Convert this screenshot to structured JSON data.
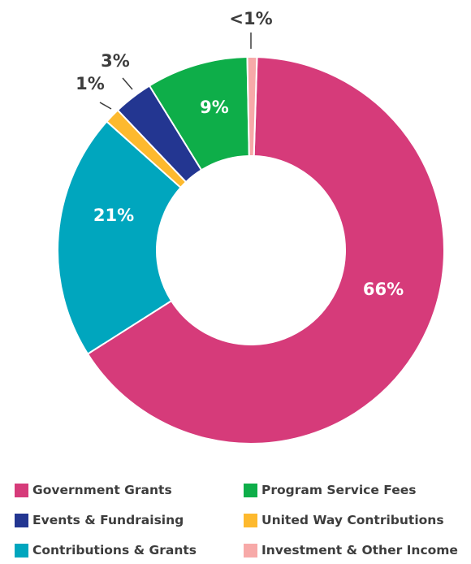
{
  "chart_data": {
    "type": "pie",
    "donut": true,
    "categories": [
      "Government Grants",
      "Contributions & Grants",
      "United Way Contributions",
      "Events & Fundraising",
      "Program Service Fees",
      "Investment & Other Income"
    ],
    "values": [
      66,
      21,
      1,
      3,
      9,
      1
    ],
    "labels": [
      "66%",
      "21%",
      "1%",
      "3%",
      "9%",
      "<1%"
    ],
    "colors": [
      "#d63b7a",
      "#00a6be",
      "#fdb92e",
      "#233691",
      "#0eae49",
      "#f7a9a8"
    ],
    "legend_position": "bottom",
    "legend": [
      {
        "label": "Government Grants",
        "color": "#d63b7a"
      },
      {
        "label": "Program Service Fees",
        "color": "#0eae49"
      },
      {
        "label": "Events & Fundraising",
        "color": "#233691"
      },
      {
        "label": "United Way Contributions",
        "color": "#fdb92e"
      },
      {
        "label": "Contributions & Grants",
        "color": "#00a6be"
      },
      {
        "label": "Investment & Other Income",
        "color": "#f7a9a8"
      }
    ]
  }
}
